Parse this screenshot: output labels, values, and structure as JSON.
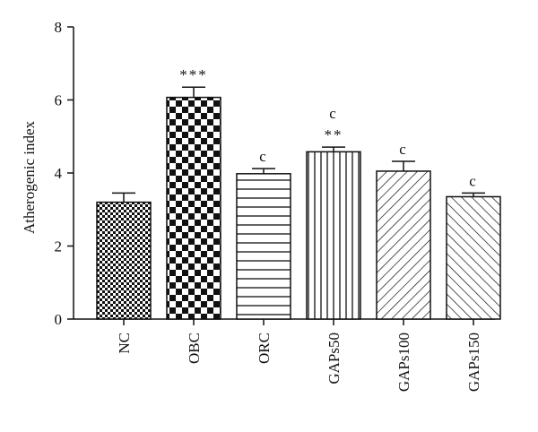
{
  "chart_data": {
    "type": "bar",
    "ylabel": "Atherogenic index",
    "xlabel": "",
    "ylim": [
      0,
      8
    ],
    "yticks": [
      0,
      2,
      4,
      6,
      8
    ],
    "grid": false,
    "legend": "none",
    "categories": [
      "NC",
      "OBC",
      "ORC",
      "GAPs50",
      "GAPs100",
      "GAPs150"
    ],
    "values": [
      3.2,
      6.07,
      3.98,
      4.58,
      4.05,
      3.35
    ],
    "errors": [
      0.25,
      0.28,
      0.14,
      0.13,
      0.27,
      0.1
    ],
    "annotations": [
      "",
      "***",
      "c",
      "c\n**",
      "c",
      "c"
    ],
    "patterns": [
      "small-checker",
      "large-checker",
      "horizontal-lines",
      "vertical-lines",
      "diagonal-lines",
      "diagonal-lines-reverse"
    ]
  }
}
